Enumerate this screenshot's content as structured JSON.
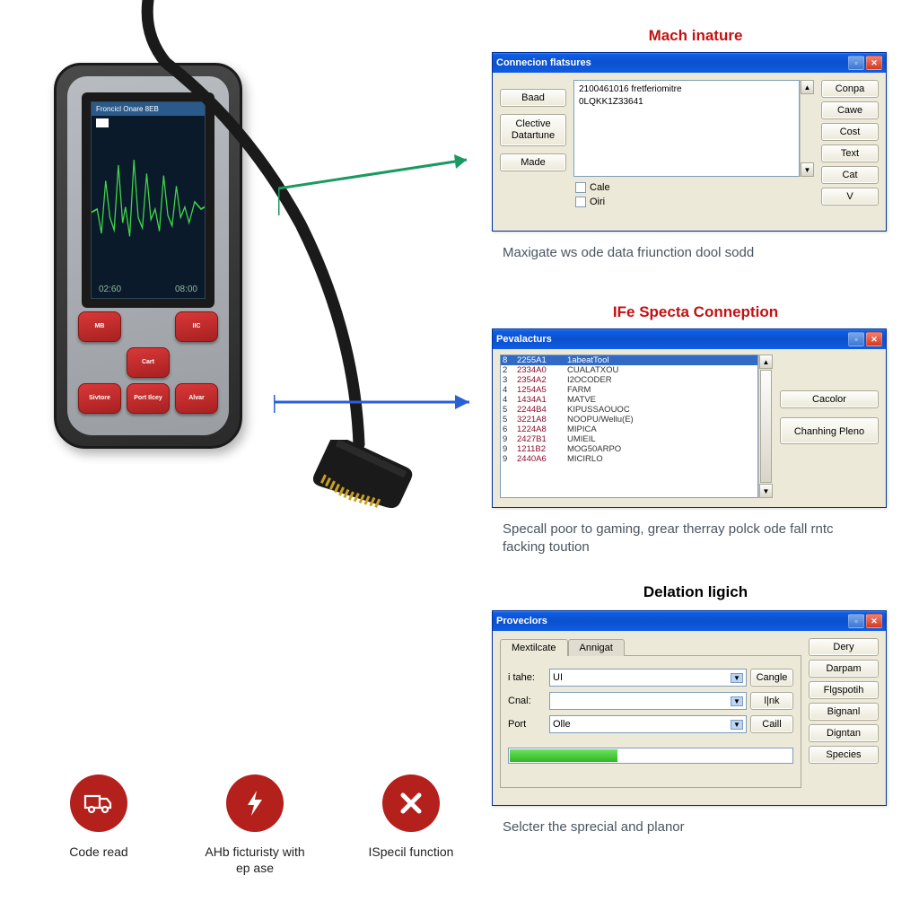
{
  "scanner": {
    "screen_header": "Froncicl Onare 8EB",
    "footer_left": "02:60",
    "footer_right": "08:00",
    "wave_color": "#3fd84a",
    "screen_bg": "#0a1a2a",
    "keys": [
      "MB",
      "IIC",
      "Cart",
      "Sivtore",
      "Port Ilcey",
      "Alvar"
    ]
  },
  "arrows": {
    "top_color": "#1a9960",
    "mid_color": "#2a5fd8"
  },
  "section1": {
    "title": "Mach inature",
    "title_color": "#c21111",
    "win_title": "Connecion flatsures",
    "left_buttons": [
      "Baad",
      "Clective Datartune",
      "Made"
    ],
    "list_text": [
      "2100461016 fretferiomitre",
      "0LQKK1Z33641"
    ],
    "checkboxes": [
      "Cale",
      "Oiri"
    ],
    "right_buttons": [
      "Conpa",
      "Cawe",
      "Cost",
      "Text",
      "Cat",
      "V"
    ],
    "caption": "Maxigate ws ode data friunction dool sodd"
  },
  "section2": {
    "title": "IFe Specta Cοnneption",
    "title_color": "#c21111",
    "caption_color": "#c21111",
    "win_title": "Pevalacturs",
    "rows": [
      {
        "n": "8",
        "a": "2255A1",
        "b": "",
        "c": "1abeatTool"
      },
      {
        "n": "2",
        "a": "2334A0",
        "b": "",
        "c": "CUALATXOU"
      },
      {
        "n": "3",
        "a": "2354A2",
        "b": "",
        "c": "I2OCODER"
      },
      {
        "n": "4",
        "a": "1254A5",
        "b": "",
        "c": "FARM"
      },
      {
        "n": "4",
        "a": "1434A1",
        "b": "",
        "c": "MATVE"
      },
      {
        "n": "5",
        "a": "2244B4",
        "b": "",
        "c": "KIPUSSAOUOC"
      },
      {
        "n": "5",
        "a": "3221A8",
        "b": "",
        "c": "NOOPU/Wellu(E)"
      },
      {
        "n": "6",
        "a": "1224A8",
        "b": "",
        "c": "MIPICA"
      },
      {
        "n": "9",
        "a": "2427B1",
        "b": "",
        "c": "UMIEIL"
      },
      {
        "n": "9",
        "a": "1211B2",
        "b": "",
        "c": "MOG50ARPO"
      },
      {
        "n": "9",
        "a": "2440A6",
        "b": "",
        "c": "MICIRLO"
      }
    ],
    "right_buttons": [
      "Cacolor",
      "Chanhing Pleno"
    ],
    "caption": "Specall poor to gaming, grear therray polck ode fall rntc facking toution"
  },
  "section3": {
    "title": "Delation ligich",
    "title_color": "#000000",
    "win_title": "Proveclors",
    "tabs": [
      "Mextilcate",
      "Annigat"
    ],
    "fields": [
      {
        "label": "i tahe:",
        "value": "UI",
        "btn": "Cangle"
      },
      {
        "label": "Cnal:",
        "value": "",
        "btn": "l|nk"
      },
      {
        "label": "Port",
        "value": "Olle",
        "btn": "Caill"
      }
    ],
    "right_buttons": [
      "Dery",
      "Darpam",
      "Flgspotih",
      "Bignanl",
      "Digntan",
      "Species"
    ],
    "progress_pct": 38,
    "caption": "Selcter the sprecial and planor"
  },
  "features": [
    {
      "label": "Code read",
      "icon": "truck",
      "color": "#b4201c"
    },
    {
      "label": "AHb ficturisty with ep ase",
      "icon": "bolt",
      "color": "#b4201c"
    },
    {
      "label": "ISpecil function",
      "icon": "x",
      "color": "#b4201c"
    }
  ]
}
